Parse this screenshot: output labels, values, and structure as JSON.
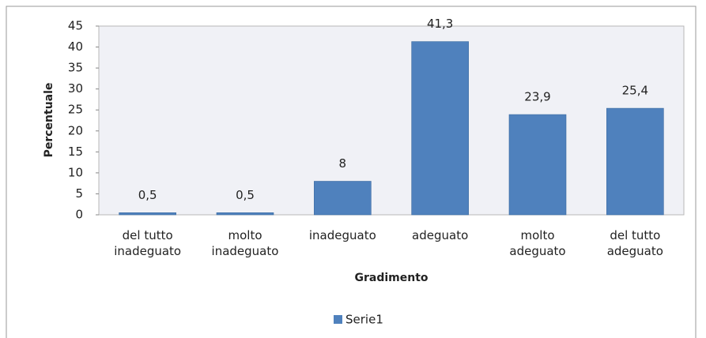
{
  "chart_data": {
    "type": "bar",
    "categories": [
      "del tutto inadeguato",
      "molto inadeguato",
      "inadeguato",
      "adeguato",
      "molto adeguato",
      "del tutto adeguato"
    ],
    "series": [
      {
        "name": "Serie1",
        "color": "#4f81bd",
        "values": [
          0.5,
          0.5,
          8,
          41.3,
          23.9,
          25.4
        ],
        "value_labels": [
          "0,5",
          "0,5",
          "8",
          "41,3",
          "23,9",
          "25,4"
        ]
      }
    ],
    "x_label": "Gradimento",
    "y_label": "Percentuale",
    "ylim": [
      0,
      45
    ],
    "yticks": [
      0,
      5,
      10,
      15,
      20,
      25,
      30,
      35,
      40,
      45
    ],
    "grid": false,
    "legend": "bottom"
  }
}
